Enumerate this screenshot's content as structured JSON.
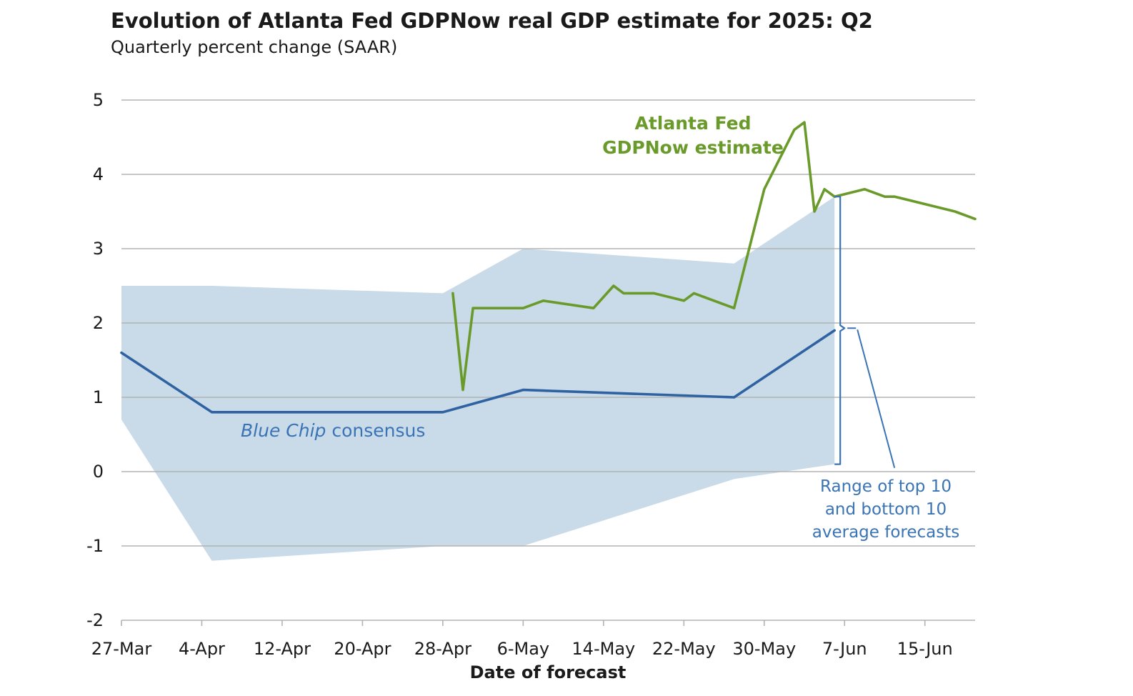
{
  "chart_data": {
    "type": "line",
    "title": "Evolution of Atlanta Fed GDPNow real GDP estimate for 2025: Q2",
    "subtitle": "Quarterly percent change (SAAR)",
    "xlabel": "Date of forecast",
    "ylabel": "",
    "ylim": [
      -2,
      5
    ],
    "xlim": [
      "2025-03-27",
      "2025-06-20"
    ],
    "yticks": [
      -2,
      -1,
      0,
      1,
      2,
      3,
      4,
      5
    ],
    "xticks": [
      {
        "date": "2025-03-27",
        "label": "27-Mar"
      },
      {
        "date": "2025-04-04",
        "label": "4-Apr"
      },
      {
        "date": "2025-04-12",
        "label": "12-Apr"
      },
      {
        "date": "2025-04-20",
        "label": "20-Apr"
      },
      {
        "date": "2025-04-28",
        "label": "28-Apr"
      },
      {
        "date": "2025-05-06",
        "label": "6-May"
      },
      {
        "date": "2025-05-14",
        "label": "14-May"
      },
      {
        "date": "2025-05-22",
        "label": "22-May"
      },
      {
        "date": "2025-05-30",
        "label": "30-May"
      },
      {
        "date": "2025-06-07",
        "label": "7-Jun"
      },
      {
        "date": "2025-06-15",
        "label": "15-Jun"
      }
    ],
    "grid": true,
    "series": [
      {
        "name": "Atlanta Fed GDPNow estimate",
        "color": "#6a9a2a",
        "points": [
          {
            "x": "2025-04-29",
            "y": 2.4
          },
          {
            "x": "2025-04-30",
            "y": 1.1
          },
          {
            "x": "2025-05-01",
            "y": 2.2
          },
          {
            "x": "2025-05-06",
            "y": 2.2
          },
          {
            "x": "2025-05-08",
            "y": 2.3
          },
          {
            "x": "2025-05-13",
            "y": 2.2
          },
          {
            "x": "2025-05-15",
            "y": 2.5
          },
          {
            "x": "2025-05-16",
            "y": 2.4
          },
          {
            "x": "2025-05-19",
            "y": 2.4
          },
          {
            "x": "2025-05-22",
            "y": 2.3
          },
          {
            "x": "2025-05-23",
            "y": 2.4
          },
          {
            "x": "2025-05-27",
            "y": 2.2
          },
          {
            "x": "2025-05-30",
            "y": 3.8
          },
          {
            "x": "2025-06-02",
            "y": 4.6
          },
          {
            "x": "2025-06-03",
            "y": 4.7
          },
          {
            "x": "2025-06-04",
            "y": 3.5
          },
          {
            "x": "2025-06-05",
            "y": 3.8
          },
          {
            "x": "2025-06-06",
            "y": 3.7
          },
          {
            "x": "2025-06-09",
            "y": 3.8
          },
          {
            "x": "2025-06-11",
            "y": 3.7
          },
          {
            "x": "2025-06-12",
            "y": 3.7
          },
          {
            "x": "2025-06-18",
            "y": 3.5
          },
          {
            "x": "2025-06-20",
            "y": 3.4
          }
        ]
      },
      {
        "name": "Blue Chip consensus",
        "color": "#2f62a1",
        "points": [
          {
            "x": "2025-03-27",
            "y": 1.6
          },
          {
            "x": "2025-04-05",
            "y": 0.8
          },
          {
            "x": "2025-04-28",
            "y": 0.8
          },
          {
            "x": "2025-05-06",
            "y": 1.1
          },
          {
            "x": "2025-05-27",
            "y": 1.0
          },
          {
            "x": "2025-06-06",
            "y": 1.9
          }
        ]
      }
    ],
    "band": {
      "name": "Range of top 10 and bottom 10 average forecasts",
      "color": "#c9dae9",
      "upper": [
        {
          "x": "2025-03-27",
          "y": 2.5
        },
        {
          "x": "2025-04-05",
          "y": 2.5
        },
        {
          "x": "2025-04-28",
          "y": 2.4
        },
        {
          "x": "2025-05-06",
          "y": 3.0
        },
        {
          "x": "2025-05-27",
          "y": 2.8
        },
        {
          "x": "2025-06-06",
          "y": 3.7
        }
      ],
      "lower": [
        {
          "x": "2025-03-27",
          "y": 0.7
        },
        {
          "x": "2025-04-05",
          "y": -1.2
        },
        {
          "x": "2025-04-28",
          "y": -1.0
        },
        {
          "x": "2025-05-06",
          "y": -1.0
        },
        {
          "x": "2025-05-27",
          "y": -0.1
        },
        {
          "x": "2025-06-06",
          "y": 0.1
        }
      ]
    },
    "annotations": {
      "gdpnow_line1": "Atlanta Fed",
      "gdpnow_line2": "GDPNow estimate",
      "bluechip_italic": "Blue Chip",
      "bluechip_rest": " consensus",
      "range_line1": "Range of top 10",
      "range_line2": "and bottom 10",
      "range_line3": "average forecasts"
    },
    "colors": {
      "grid": "#b3b3b3",
      "text": "#1a1a1a",
      "annotation_blue": "#3a74b4"
    }
  }
}
